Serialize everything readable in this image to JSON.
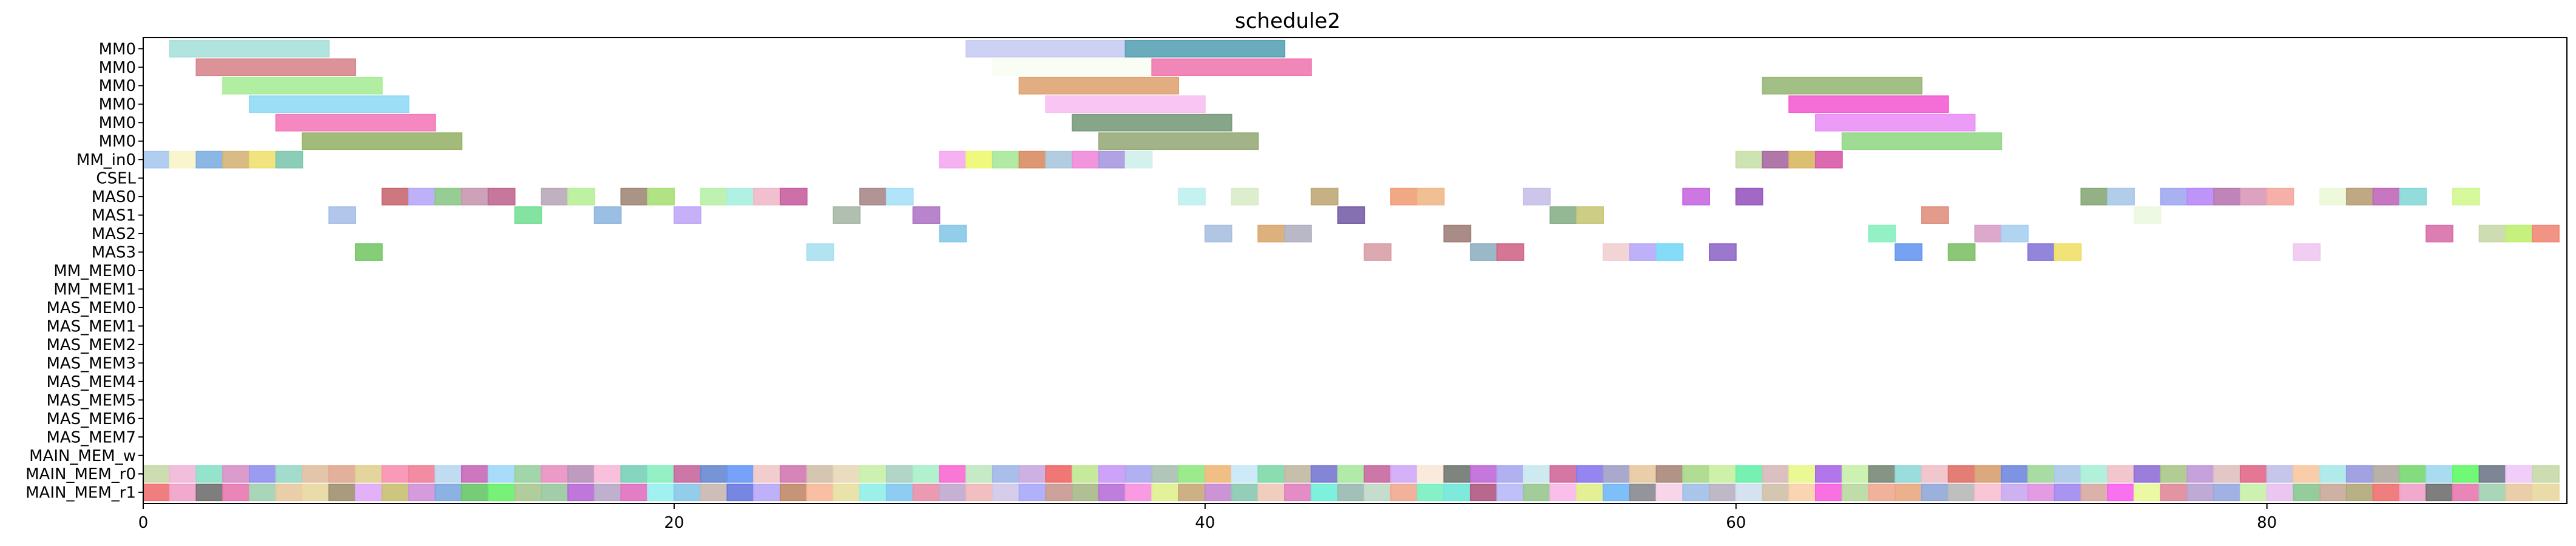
{
  "chart_data": {
    "type": "gantt",
    "title": "schedule2",
    "xlabel": "",
    "ylabel": "",
    "xlim": [
      0,
      91.3
    ],
    "xticks": [
      0,
      20,
      40,
      60,
      80
    ],
    "grid": false,
    "rows": [
      "MM0",
      "MM0",
      "MM0",
      "MM0",
      "MM0",
      "MM0",
      "MM_in0",
      "CSEL",
      "MAS0",
      "MAS1",
      "MAS2",
      "MAS3",
      "MM_MEM0",
      "MM_MEM1",
      "MAS_MEM0",
      "MAS_MEM1",
      "MAS_MEM2",
      "MAS_MEM3",
      "MAS_MEM4",
      "MAS_MEM5",
      "MAS_MEM6",
      "MAS_MEM7",
      "MAIN_MEM_w",
      "MAIN_MEM_r0",
      "MAIN_MEM_r1"
    ],
    "tasks": [
      {
        "row": 0,
        "start": 1.0,
        "end": 7.0,
        "color": "#a8e0dc"
      },
      {
        "row": 0,
        "start": 31.0,
        "end": 37.0,
        "color": "#c8ccf2"
      },
      {
        "row": 0,
        "start": 37.0,
        "end": 43.0,
        "color": "#5aa2b5"
      },
      {
        "row": 1,
        "start": 2.0,
        "end": 8.0,
        "color": "#d8868e"
      },
      {
        "row": 1,
        "start": 32.0,
        "end": 38.0,
        "color": "#f8fdf2"
      },
      {
        "row": 1,
        "start": 38.0,
        "end": 44.0,
        "color": "#f07ab0"
      },
      {
        "row": 2,
        "start": 3.0,
        "end": 9.0,
        "color": "#a8ec98"
      },
      {
        "row": 2,
        "start": 33.0,
        "end": 39.0,
        "color": "#e0a474"
      },
      {
        "row": 2,
        "start": 61.0,
        "end": 67.0,
        "color": "#98b878"
      },
      {
        "row": 3,
        "start": 4.0,
        "end": 10.0,
        "color": "#90daf4"
      },
      {
        "row": 3,
        "start": 34.0,
        "end": 40.0,
        "color": "#f8c0f2"
      },
      {
        "row": 3,
        "start": 62.0,
        "end": 68.0,
        "color": "#f45ed4"
      },
      {
        "row": 4,
        "start": 5.0,
        "end": 11.0,
        "color": "#f47aba"
      },
      {
        "row": 4,
        "start": 35.0,
        "end": 41.0,
        "color": "#7a9c7c"
      },
      {
        "row": 4,
        "start": 63.0,
        "end": 69.0,
        "color": "#ea90f6"
      },
      {
        "row": 5,
        "start": 6.0,
        "end": 12.0,
        "color": "#98b46c"
      },
      {
        "row": 5,
        "start": 36.0,
        "end": 42.0,
        "color": "#98ac7a"
      },
      {
        "row": 5,
        "start": 64.0,
        "end": 70.0,
        "color": "#94d888"
      },
      {
        "row": 6,
        "start": 0.0,
        "end": 1.0,
        "color": "#a8c8ee"
      },
      {
        "row": 6,
        "start": 1.0,
        "end": 2.0,
        "color": "#f8f4c8"
      },
      {
        "row": 6,
        "start": 2.0,
        "end": 3.0,
        "color": "#80aee0"
      },
      {
        "row": 6,
        "start": 3.0,
        "end": 4.0,
        "color": "#d4b478"
      },
      {
        "row": 6,
        "start": 4.0,
        "end": 5.0,
        "color": "#f0e070"
      },
      {
        "row": 6,
        "start": 5.0,
        "end": 6.0,
        "color": "#80c8b0"
      },
      {
        "row": 6,
        "start": 30.0,
        "end": 31.0,
        "color": "#f4a8f0"
      },
      {
        "row": 6,
        "start": 31.0,
        "end": 32.0,
        "color": "#ecf870"
      },
      {
        "row": 6,
        "start": 32.0,
        "end": 33.0,
        "color": "#a8e898"
      },
      {
        "row": 6,
        "start": 33.0,
        "end": 34.0,
        "color": "#d88c64"
      },
      {
        "row": 6,
        "start": 34.0,
        "end": 35.0,
        "color": "#a8c8dc"
      },
      {
        "row": 6,
        "start": 35.0,
        "end": 36.0,
        "color": "#f08ad8"
      },
      {
        "row": 6,
        "start": 36.0,
        "end": 37.0,
        "color": "#a898e0"
      },
      {
        "row": 6,
        "start": 37.0,
        "end": 38.0,
        "color": "#d0f0ec"
      },
      {
        "row": 6,
        "start": 60.0,
        "end": 61.0,
        "color": "#c8e0a8"
      },
      {
        "row": 6,
        "start": 61.0,
        "end": 62.0,
        "color": "#a868a0"
      },
      {
        "row": 6,
        "start": 62.0,
        "end": 63.0,
        "color": "#d8b860"
      },
      {
        "row": 6,
        "start": 63.0,
        "end": 64.0,
        "color": "#d85aa8"
      },
      {
        "row": 8,
        "start": 9.0,
        "end": 10.0,
        "color": "#c86870"
      },
      {
        "row": 8,
        "start": 10.0,
        "end": 11.0,
        "color": "#b8a8f8"
      },
      {
        "row": 8,
        "start": 11.0,
        "end": 12.0,
        "color": "#8cc888"
      },
      {
        "row": 8,
        "start": 12.0,
        "end": 13.0,
        "color": "#c898b0"
      },
      {
        "row": 8,
        "start": 13.0,
        "end": 14.0,
        "color": "#c06890"
      },
      {
        "row": 8,
        "start": 15.0,
        "end": 16.0,
        "color": "#b8a8b8"
      },
      {
        "row": 8,
        "start": 16.0,
        "end": 17.0,
        "color": "#b8f098"
      },
      {
        "row": 8,
        "start": 18.0,
        "end": 19.0,
        "color": "#a08878"
      },
      {
        "row": 8,
        "start": 19.0,
        "end": 20.0,
        "color": "#a8e078"
      },
      {
        "row": 8,
        "start": 21.0,
        "end": 22.0,
        "color": "#b8f0a8"
      },
      {
        "row": 8,
        "start": 22.0,
        "end": 23.0,
        "color": "#a8f0e0"
      },
      {
        "row": 8,
        "start": 23.0,
        "end": 24.0,
        "color": "#f0b8c8"
      },
      {
        "row": 8,
        "start": 24.0,
        "end": 25.0,
        "color": "#c860a0"
      },
      {
        "row": 8,
        "start": 27.0,
        "end": 28.0,
        "color": "#a88888"
      },
      {
        "row": 8,
        "start": 28.0,
        "end": 29.0,
        "color": "#a8e0f8"
      },
      {
        "row": 8,
        "start": 39.0,
        "end": 40.0,
        "color": "#c0f0f0"
      },
      {
        "row": 8,
        "start": 41.0,
        "end": 42.0,
        "color": "#d8ecc8"
      },
      {
        "row": 8,
        "start": 44.0,
        "end": 45.0,
        "color": "#c0a878"
      },
      {
        "row": 8,
        "start": 47.0,
        "end": 48.0,
        "color": "#f0a078"
      },
      {
        "row": 8,
        "start": 48.0,
        "end": 49.0,
        "color": "#f0b888"
      },
      {
        "row": 8,
        "start": 52.0,
        "end": 53.0,
        "color": "#c8c0e8"
      },
      {
        "row": 8,
        "start": 58.0,
        "end": 59.0,
        "color": "#c868e0"
      },
      {
        "row": 8,
        "start": 60.0,
        "end": 61.0,
        "color": "#9858c0"
      },
      {
        "row": 8,
        "start": 73.0,
        "end": 74.0,
        "color": "#88a878"
      },
      {
        "row": 8,
        "start": 74.0,
        "end": 75.0,
        "color": "#a8c8e8"
      },
      {
        "row": 8,
        "start": 76.0,
        "end": 77.0,
        "color": "#a0a8f0"
      },
      {
        "row": 8,
        "start": 77.0,
        "end": 78.0,
        "color": "#b888f8"
      },
      {
        "row": 8,
        "start": 78.0,
        "end": 79.0,
        "color": "#b878b0"
      },
      {
        "row": 8,
        "start": 79.0,
        "end": 80.0,
        "color": "#d898b8"
      },
      {
        "row": 8,
        "start": 80.0,
        "end": 81.0,
        "color": "#f4a8a0"
      },
      {
        "row": 8,
        "start": 82.0,
        "end": 83.0,
        "color": "#ecf8d8"
      },
      {
        "row": 8,
        "start": 83.0,
        "end": 84.0,
        "color": "#b8a078"
      },
      {
        "row": 8,
        "start": 84.0,
        "end": 85.0,
        "color": "#c068b8"
      },
      {
        "row": 8,
        "start": 85.0,
        "end": 86.0,
        "color": "#88d8d8"
      },
      {
        "row": 8,
        "start": 87.0,
        "end": 88.0,
        "color": "#d0f890"
      },
      {
        "row": 9,
        "start": 7.0,
        "end": 8.0,
        "color": "#a8c0e8"
      },
      {
        "row": 9,
        "start": 14.0,
        "end": 15.0,
        "color": "#78e098"
      },
      {
        "row": 9,
        "start": 17.0,
        "end": 18.0,
        "color": "#90b8e0"
      },
      {
        "row": 9,
        "start": 20.0,
        "end": 21.0,
        "color": "#c0a8f8"
      },
      {
        "row": 9,
        "start": 26.0,
        "end": 27.0,
        "color": "#a8b8a8"
      },
      {
        "row": 9,
        "start": 29.0,
        "end": 30.0,
        "color": "#b078c8"
      },
      {
        "row": 9,
        "start": 45.0,
        "end": 46.0,
        "color": "#7860a8"
      },
      {
        "row": 9,
        "start": 53.0,
        "end": 54.0,
        "color": "#88b088"
      },
      {
        "row": 9,
        "start": 54.0,
        "end": 55.0,
        "color": "#c8c878"
      },
      {
        "row": 9,
        "start": 67.0,
        "end": 68.0,
        "color": "#e09080"
      },
      {
        "row": 9,
        "start": 75.0,
        "end": 76.0,
        "color": "#ecf8e0"
      },
      {
        "row": 10,
        "start": 30.0,
        "end": 31.0,
        "color": "#88c8e8"
      },
      {
        "row": 10,
        "start": 40.0,
        "end": 41.0,
        "color": "#a8c0e0"
      },
      {
        "row": 10,
        "start": 42.0,
        "end": 43.0,
        "color": "#d8a870"
      },
      {
        "row": 10,
        "start": 43.0,
        "end": 44.0,
        "color": "#b0b0c0"
      },
      {
        "row": 10,
        "start": 49.0,
        "end": 50.0,
        "color": "#a08078"
      },
      {
        "row": 10,
        "start": 65.0,
        "end": 66.0,
        "color": "#88f0c0"
      },
      {
        "row": 10,
        "start": 69.0,
        "end": 70.0,
        "color": "#d8a0c8"
      },
      {
        "row": 10,
        "start": 70.0,
        "end": 71.0,
        "color": "#a8d0f0"
      },
      {
        "row": 10,
        "start": 86.0,
        "end": 87.0,
        "color": "#d870a8"
      },
      {
        "row": 10,
        "start": 88.0,
        "end": 89.0,
        "color": "#c8d8a8"
      },
      {
        "row": 10,
        "start": 89.0,
        "end": 90.0,
        "color": "#c0f070"
      },
      {
        "row": 10,
        "start": 90.0,
        "end": 91.0,
        "color": "#f08878"
      },
      {
        "row": 11,
        "start": 8.0,
        "end": 9.0,
        "color": "#78c868"
      },
      {
        "row": 11,
        "start": 25.0,
        "end": 26.0,
        "color": "#a8e0f0"
      },
      {
        "row": 11,
        "start": 46.0,
        "end": 47.0,
        "color": "#d8a0a8"
      },
      {
        "row": 11,
        "start": 50.0,
        "end": 51.0,
        "color": "#90b0c0"
      },
      {
        "row": 11,
        "start": 51.0,
        "end": 52.0,
        "color": "#d06888"
      },
      {
        "row": 11,
        "start": 55.0,
        "end": 56.0,
        "color": "#f0d0d0"
      },
      {
        "row": 11,
        "start": 56.0,
        "end": 57.0,
        "color": "#b8a8f8"
      },
      {
        "row": 11,
        "start": 57.0,
        "end": 58.0,
        "color": "#78d8f8"
      },
      {
        "row": 11,
        "start": 59.0,
        "end": 60.0,
        "color": "#9068c8"
      },
      {
        "row": 11,
        "start": 66.0,
        "end": 67.0,
        "color": "#6898f0"
      },
      {
        "row": 11,
        "start": 68.0,
        "end": 69.0,
        "color": "#80c068"
      },
      {
        "row": 11,
        "start": 71.0,
        "end": 72.0,
        "color": "#8878d8"
      },
      {
        "row": 11,
        "start": 72.0,
        "end": 73.0,
        "color": "#f0e068"
      },
      {
        "row": 11,
        "start": 81.0,
        "end": 82.0,
        "color": "#f0c8f0"
      }
    ],
    "strip_rows": [
      {
        "row": 23,
        "start": 0,
        "count": 91,
        "colors": [
          "#c8d8a8",
          "#f0b8d8",
          "#88e0c8",
          "#d890c8",
          "#9090f0",
          "#98d8c8",
          "#e0c0a0",
          "#e0a890",
          "#e0d090",
          "#f890b0",
          "#f08098",
          "#b8d8f0",
          "#c868b8",
          "#a0d8f8",
          "#98d0a0",
          "#e890c0",
          "#b890b8",
          "#f8b8d8",
          "#78d0b8",
          "#88f0c0",
          "#c868a0",
          "#6888d0",
          "#6898f8",
          "#f0c8c8",
          "#d078b0",
          "#d0c0a8",
          "#e8d8b8",
          "#c8f0a8",
          "#a8d0c0",
          "#a8f0c8",
          "#f868d0",
          "#c0e8c0",
          "#a0b8e8",
          "#c8a8e0",
          "#f06868",
          "#c0e890",
          "#c898f8",
          "#a8a8f0",
          "#a8c0b0",
          "#90e880",
          "#f0b878",
          "#c8e8f8",
          "#80d8a8",
          "#c0b8a0",
          "#7878d0",
          "#a8e8a0",
          "#c868a0",
          "#d0a8f8",
          "#f8e8d8",
          "#707870",
          "#c068d8",
          "#a8a8f0",
          "#c8e8f0",
          "#d06898",
          "#8878f0",
          "#a0a0c8",
          "#e8c8a0",
          "#a88878",
          "#a8d888",
          "#c8f0a0",
          "#68f0a8",
          "#d8b8b8",
          "#e8f888",
          "#a868e8",
          "#c8f0a8",
          "#788878",
          "#90d8d8",
          "#f0c0c8",
          "#e07068",
          "#d8a070",
          "#7088e0",
          "#a0d898",
          "#a8c8e8",
          "#a8f0d8",
          "#f0c0c8",
          "#9070d8",
          "#a8c888",
          "#c098d8",
          "#e0c0c0",
          "#e06888",
          "#c0c0e8",
          "#f8c8a0",
          "#a8e8e8",
          "#9898e0",
          "#b0a8a0",
          "#78d870",
          "#a0d8f0",
          "#60f868",
          "#707888",
          "#f0c8f8"
        ]
      },
      {
        "row": 24,
        "start": 0,
        "count": 91,
        "colors": [
          "#f07070",
          "#f0a0c8",
          "#707070",
          "#e878b0",
          "#a0d0b0",
          "#e8c8a0",
          "#e8d8a0",
          "#a09070",
          "#e0a8f8",
          "#c8c070",
          "#d090d8",
          "#80a8e0",
          "#68c868",
          "#68f068",
          "#a8c890",
          "#98c8a0",
          "#b868d8",
          "#b8a8c8",
          "#e070c0",
          "#98f0f0",
          "#88c8e8",
          "#c8b8b0",
          "#6878e0",
          "#b8a8f8",
          "#c08868",
          "#f8b898",
          "#e8e0a0",
          "#90f0e8",
          "#80c8f0",
          "#e890a8",
          "#c0a8d0",
          "#f0b8b8",
          "#d0c8e8",
          "#a8a8f8",
          "#c89890",
          "#a8b888",
          "#b870d8",
          "#f890e0",
          "#e0f090",
          "#c8a878",
          "#c888d0",
          "#88c8b0",
          "#f0c8b8",
          "#e080c0",
          "#70f0d8",
          "#98b8b0",
          "#c0d8c8",
          "#f0a890",
          "#78f0c0",
          "#70e8d8",
          "#b05880",
          "#b8b8f8",
          "#98c890",
          "#f8b8e8",
          "#e0f088",
          "#70b8f8",
          "#888890",
          "#f8d0e8",
          "#a0c0e8",
          "#b8b0c0",
          "#d0e0f0",
          "#d0c0a8",
          "#f8d0a8",
          "#f860e0",
          "#b8d8a0",
          "#f0a890",
          "#e8a880",
          "#90a8d8",
          "#b8b8b8",
          "#f8c0d0",
          "#c8a8f0",
          "#e090e0",
          "#a088f0",
          "#d8a8a0",
          "#f860f0",
          "#e8f898",
          "#e08898",
          "#b8a0d0",
          "#98a8e0",
          "#c8f0a8",
          "#e8c0f0",
          "#88c890",
          "#c8a898",
          "#b0a878",
          "#f07070",
          "#f0a0c8",
          "#707070",
          "#e878b0",
          "#a0d0b0",
          "#e8c8a0",
          "#e8d8a0"
        ]
      }
    ]
  }
}
